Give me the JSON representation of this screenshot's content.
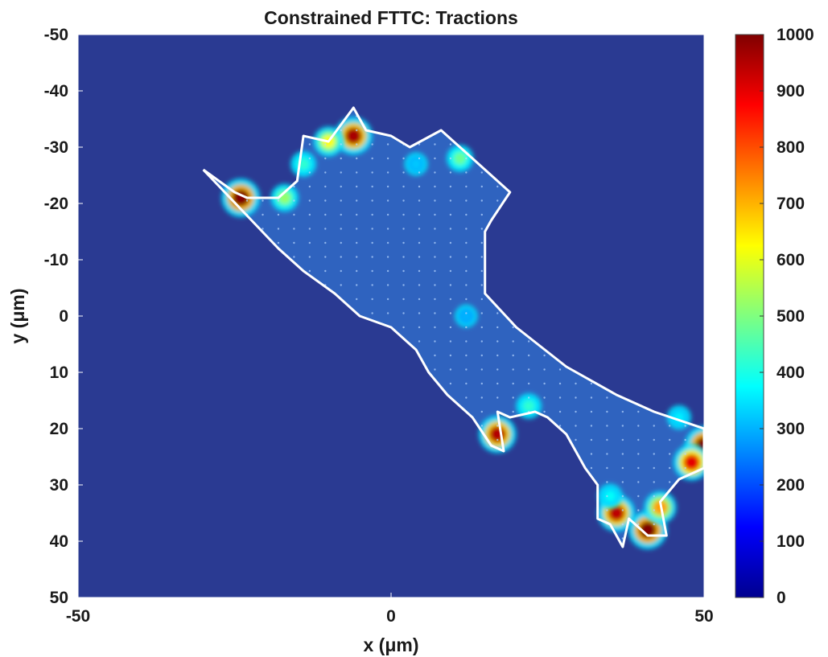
{
  "chart_data": {
    "type": "heatmap",
    "title": "Constrained FTTC: Tractions",
    "xlabel": "x (μm)",
    "ylabel": "y (μm)",
    "xlim": [
      -50,
      50
    ],
    "ylim": [
      -50,
      50
    ],
    "y_axis_reversed": true,
    "grid": false,
    "colormap": "jet",
    "colors": {
      "background_field": "#2a3a92",
      "cell_interior": "#2f63bf",
      "cell_outline": "#ffffff"
    },
    "x_ticks": [
      {
        "value": -50,
        "label": "-50"
      },
      {
        "value": 0,
        "label": "0"
      },
      {
        "value": 50,
        "label": "50"
      }
    ],
    "y_ticks": [
      {
        "value": -50,
        "label": "-50"
      },
      {
        "value": -40,
        "label": "-40"
      },
      {
        "value": -30,
        "label": "-30"
      },
      {
        "value": -20,
        "label": "-20"
      },
      {
        "value": -10,
        "label": "-10"
      },
      {
        "value": 0,
        "label": "0"
      },
      {
        "value": 10,
        "label": "10"
      },
      {
        "value": 20,
        "label": "20"
      },
      {
        "value": 30,
        "label": "30"
      },
      {
        "value": 40,
        "label": "40"
      },
      {
        "value": 50,
        "label": "50"
      }
    ],
    "colorbar": {
      "range": [
        0,
        1000
      ],
      "ticks": [
        {
          "value": 1000,
          "label": "1000"
        },
        {
          "value": 900,
          "label": "900"
        },
        {
          "value": 800,
          "label": "800"
        },
        {
          "value": 700,
          "label": "700"
        },
        {
          "value": 600,
          "label": "600"
        },
        {
          "value": 500,
          "label": "500"
        },
        {
          "value": 400,
          "label": "400"
        },
        {
          "value": 300,
          "label": "300"
        },
        {
          "value": 200,
          "label": "200"
        },
        {
          "value": 100,
          "label": "100"
        },
        {
          "value": 0,
          "label": "0"
        }
      ]
    },
    "cell_outline": [
      [
        -30,
        -26
      ],
      [
        -25,
        -22
      ],
      [
        -23,
        -21
      ],
      [
        -18,
        -21
      ],
      [
        -15,
        -24
      ],
      [
        -14,
        -32
      ],
      [
        -10,
        -31
      ],
      [
        -8,
        -34
      ],
      [
        -6,
        -37
      ],
      [
        -4,
        -33
      ],
      [
        0,
        -32
      ],
      [
        3,
        -30
      ],
      [
        8,
        -33
      ],
      [
        12,
        -29
      ],
      [
        19,
        -22
      ],
      [
        16,
        -17
      ],
      [
        15,
        -15
      ],
      [
        15,
        -4
      ],
      [
        20,
        2
      ],
      [
        28,
        9
      ],
      [
        36,
        14
      ],
      [
        42,
        17
      ],
      [
        50,
        20
      ],
      [
        50,
        27
      ],
      [
        46,
        29
      ],
      [
        43,
        33
      ],
      [
        44,
        39
      ],
      [
        41,
        39
      ],
      [
        38,
        36
      ],
      [
        37,
        41
      ],
      [
        35,
        37
      ],
      [
        33,
        36
      ],
      [
        33,
        30
      ],
      [
        31,
        27
      ],
      [
        28,
        21
      ],
      [
        25,
        18
      ],
      [
        23,
        17
      ],
      [
        19,
        18
      ],
      [
        17,
        17
      ],
      [
        18,
        24
      ],
      [
        16,
        23
      ],
      [
        13,
        18
      ],
      [
        9,
        14
      ],
      [
        6,
        10
      ],
      [
        4,
        6
      ],
      [
        0,
        2
      ],
      [
        -5,
        0
      ],
      [
        -9,
        -4
      ],
      [
        -14,
        -8
      ],
      [
        -18,
        -12
      ],
      [
        -24,
        -19
      ]
    ],
    "traction_hotspots": [
      {
        "x": -24,
        "y": -21,
        "value": 1000
      },
      {
        "x": -6,
        "y": -32,
        "value": 960
      },
      {
        "x": -10,
        "y": -31,
        "value": 620
      },
      {
        "x": -17,
        "y": -21,
        "value": 520
      },
      {
        "x": -14,
        "y": -27,
        "value": 420
      },
      {
        "x": 17,
        "y": 21,
        "value": 950
      },
      {
        "x": 50,
        "y": 23,
        "value": 1000
      },
      {
        "x": 48,
        "y": 26,
        "value": 900
      },
      {
        "x": 41,
        "y": 38,
        "value": 1000
      },
      {
        "x": 36,
        "y": 35,
        "value": 940
      },
      {
        "x": 43,
        "y": 34,
        "value": 720
      },
      {
        "x": 35,
        "y": 32,
        "value": 380
      },
      {
        "x": 22,
        "y": 16,
        "value": 420
      },
      {
        "x": 11,
        "y": -28,
        "value": 480
      },
      {
        "x": 12,
        "y": 0,
        "value": 300
      },
      {
        "x": 4,
        "y": -27,
        "value": 320
      },
      {
        "x": 46,
        "y": 18,
        "value": 360
      }
    ]
  }
}
